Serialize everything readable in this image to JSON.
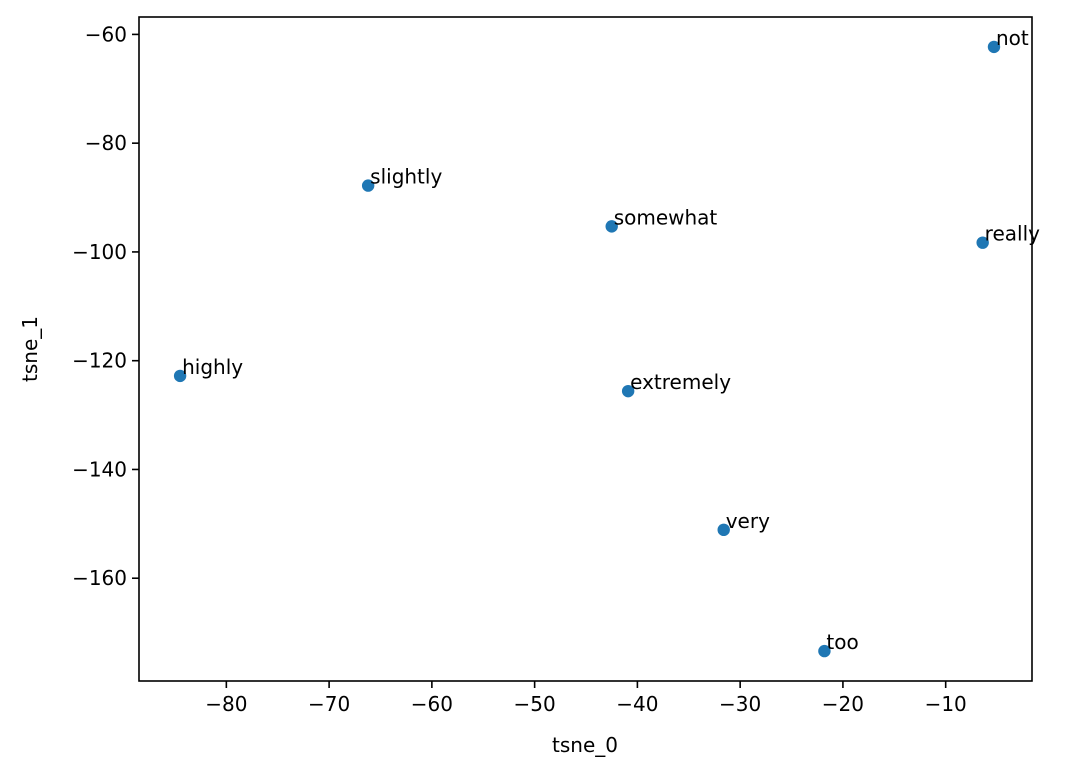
{
  "chart_data": {
    "type": "scatter",
    "title": "",
    "xlabel": "tsne_0",
    "ylabel": "tsne_1",
    "xlim": [
      -88.5,
      -1.6
    ],
    "ylim": [
      -178.9,
      -56.8
    ],
    "xticks": [
      -80,
      -70,
      -60,
      -50,
      -40,
      -30,
      -20,
      -10
    ],
    "yticks": [
      -60,
      -80,
      -100,
      -120,
      -140,
      -160
    ],
    "grid": false,
    "legend": "none",
    "marker_color": "#1f77b4",
    "points": [
      {
        "label": "not",
        "x": -5.3,
        "y": -62.3
      },
      {
        "label": "slightly",
        "x": -66.2,
        "y": -87.8
      },
      {
        "label": "somewhat",
        "x": -42.5,
        "y": -95.3
      },
      {
        "label": "really",
        "x": -6.4,
        "y": -98.3
      },
      {
        "label": "highly",
        "x": -84.5,
        "y": -122.8
      },
      {
        "label": "extremely",
        "x": -40.9,
        "y": -125.6
      },
      {
        "label": "very",
        "x": -31.6,
        "y": -151.1
      },
      {
        "label": "too",
        "x": -21.8,
        "y": -173.4
      }
    ]
  }
}
